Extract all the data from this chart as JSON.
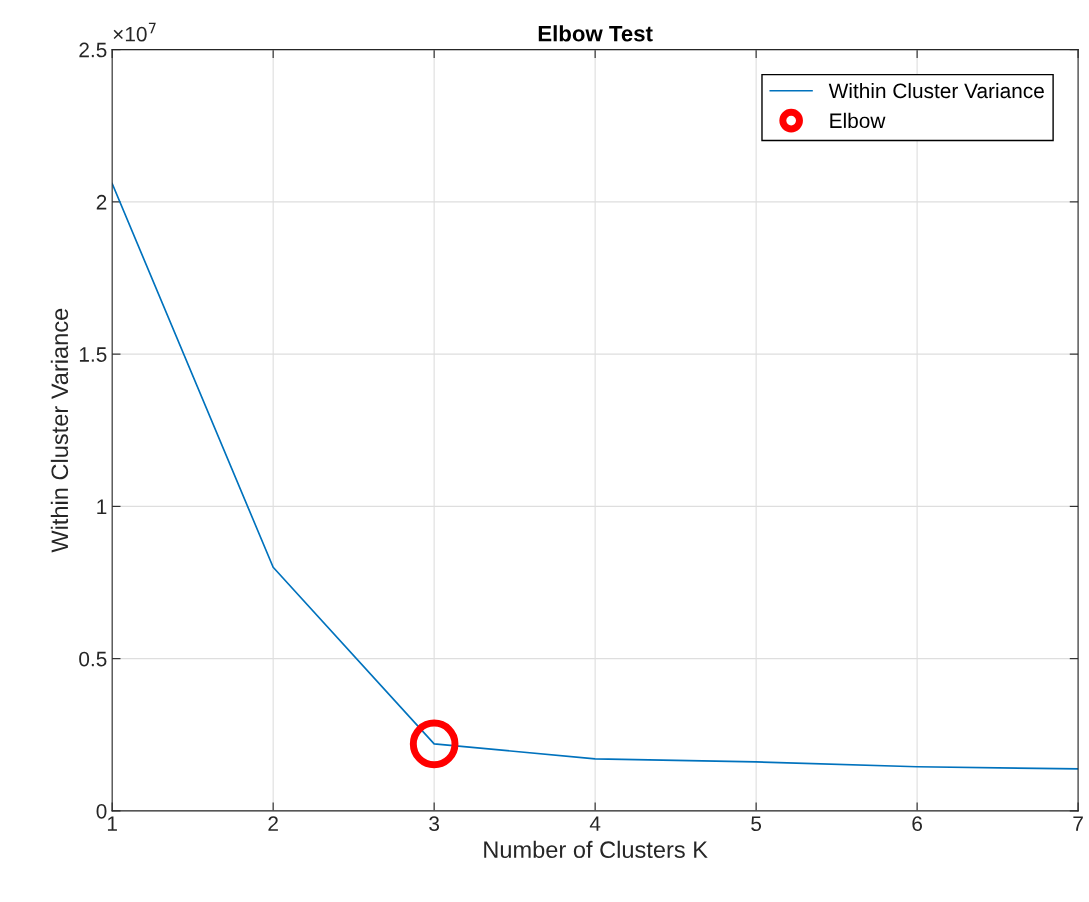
{
  "chart_data": {
    "type": "line",
    "title": "Elbow Test",
    "xlabel": "Number of Clusters K",
    "ylabel": "Within Cluster Variance",
    "x": [
      1,
      2,
      3,
      4,
      5,
      6,
      7
    ],
    "series": [
      {
        "name": "Within Cluster Variance",
        "color": "#0072bd",
        "values": [
          2.06,
          0.8,
          0.22,
          0.171,
          0.161,
          0.145,
          0.138
        ],
        "marker": "none"
      },
      {
        "name": "Elbow",
        "type": "scatter",
        "color": "#ff0000",
        "x": [
          3
        ],
        "values": [
          0.22
        ],
        "marker": "circle"
      }
    ],
    "xlim": [
      1,
      7
    ],
    "xticks": [
      1,
      2,
      3,
      4,
      5,
      6,
      7
    ],
    "ylim": [
      0,
      2.5
    ],
    "yticks": [
      0,
      0.5,
      1,
      1.5,
      2,
      2.5
    ],
    "annotations": [
      "×10$^{7}$"
    ],
    "grid": true,
    "legend": "top right"
  }
}
